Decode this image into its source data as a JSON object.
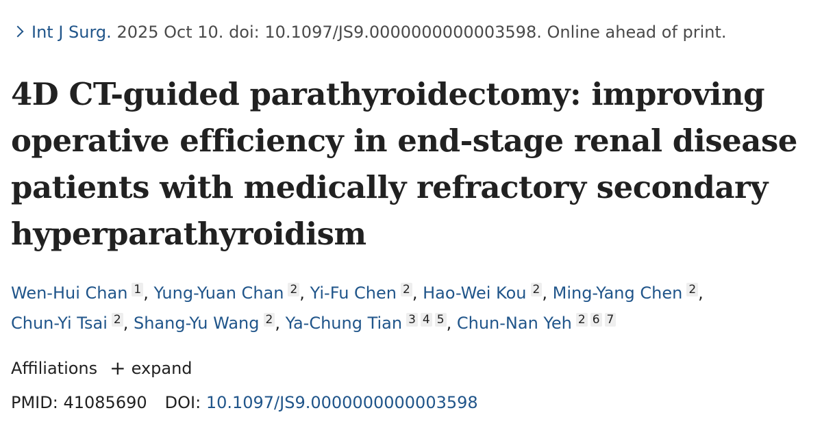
{
  "citation": {
    "journal": "Int J Surg.",
    "details": "2025 Oct 10. doi: 10.1097/JS9.0000000000003598. Online ahead of print."
  },
  "title": "4D CT-guided parathyroidectomy: improving operative efficiency in end-stage renal disease patients with medically refractory secondary hyperparathyroidism",
  "authors": [
    {
      "name": "Wen-Hui Chan",
      "affs": [
        "1"
      ],
      "sep": ","
    },
    {
      "name": "Yung-Yuan Chan",
      "affs": [
        "2"
      ],
      "sep": ","
    },
    {
      "name": "Yi-Fu Chen",
      "affs": [
        "2"
      ],
      "sep": ","
    },
    {
      "name": "Hao-Wei Kou",
      "affs": [
        "2"
      ],
      "sep": ","
    },
    {
      "name": "Ming-Yang Chen",
      "affs": [
        "2"
      ],
      "sep": ","
    },
    {
      "name": "Chun-Yi Tsai",
      "affs": [
        "2"
      ],
      "sep": ","
    },
    {
      "name": "Shang-Yu Wang",
      "affs": [
        "2"
      ],
      "sep": ","
    },
    {
      "name": "Ya-Chung Tian",
      "affs": [
        "3",
        "4",
        "5"
      ],
      "sep": ","
    },
    {
      "name": "Chun-Nan Yeh",
      "affs": [
        "2",
        "6",
        "7"
      ],
      "sep": ""
    }
  ],
  "affiliations": {
    "label": "Affiliations",
    "toggle_icon": "+",
    "toggle_label": "expand"
  },
  "ids": {
    "pmid_label": "PMID:",
    "pmid": "41085690",
    "doi_label": "DOI:",
    "doi": "10.1097/JS9.0000000000003598"
  },
  "colors": {
    "link": "#20558a",
    "text": "#212121",
    "muted": "#4a4a4a",
    "badge_bg": "#eeeeee"
  }
}
